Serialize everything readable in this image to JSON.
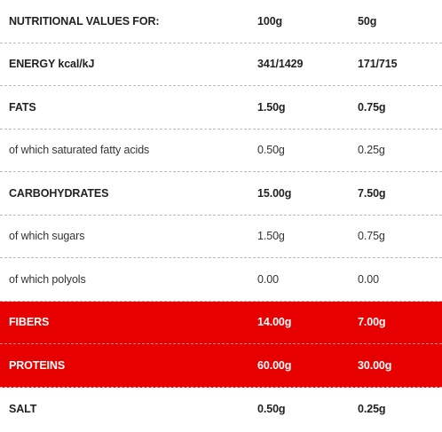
{
  "header": {
    "label": "NUTRITIONAL VALUES FOR:",
    "col1": "100g",
    "col2": "50g"
  },
  "rows": [
    {
      "label": "ENERGY kcal/kJ",
      "v100": "341/1429",
      "v50": "171/715",
      "style": "bold"
    },
    {
      "label": "FATS",
      "v100": "1.50g",
      "v50": "0.75g",
      "style": "bold"
    },
    {
      "label": "of which saturated fatty acids",
      "v100": "0.50g",
      "v50": "0.25g",
      "style": "light"
    },
    {
      "label": "CARBOHYDRATES",
      "v100": "15.00g",
      "v50": "7.50g",
      "style": "bold"
    },
    {
      "label": "of which sugars",
      "v100": "1.50g",
      "v50": "0.75g",
      "style": "light"
    },
    {
      "label": "of which polyols",
      "v100": "0.00",
      "v50": "0.00",
      "style": "light"
    },
    {
      "label": "FIBERS",
      "v100": "14.00g",
      "v50": "7.00g",
      "style": "highlight"
    },
    {
      "label": "PROTEINS",
      "v100": "60.00g",
      "v50": "30.00g",
      "style": "highlight"
    },
    {
      "label": "SALT",
      "v100": "0.50g",
      "v50": "0.25g",
      "style": "bold"
    }
  ],
  "colors": {
    "highlight": "#e60000",
    "text": "#222222",
    "divider": "#bcbcbc"
  }
}
